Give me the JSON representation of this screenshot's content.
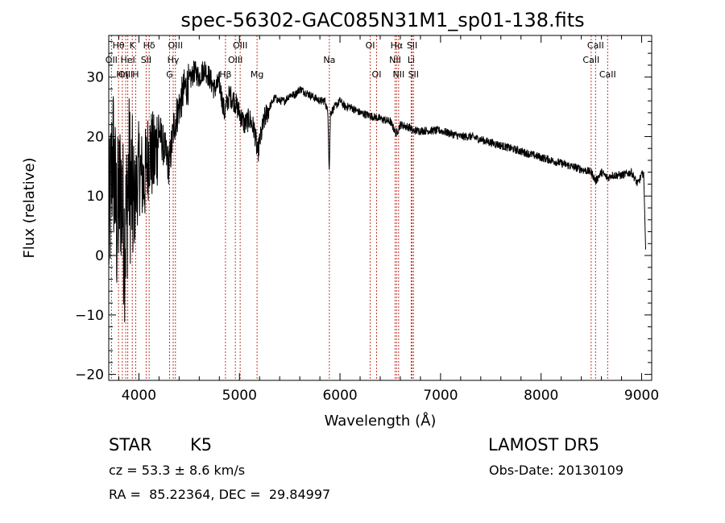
{
  "chart_data": {
    "type": "line",
    "title": "spec-56302-GAC085N31M1_sp01-138.fits",
    "xlabel": "Wavelength (Å)",
    "ylabel": "Flux (relative)",
    "xlim": [
      3700,
      9100
    ],
    "ylim": [
      -21,
      37
    ],
    "x_ticks": [
      4000,
      5000,
      6000,
      7000,
      8000,
      9000
    ],
    "y_ticks": [
      -20,
      -10,
      0,
      10,
      20,
      30
    ],
    "grid": false,
    "line_color": "#000000",
    "marker_color": "#c0392b",
    "spectral_lines": [
      {
        "label": "Hθ",
        "wavelength": 3797,
        "row": 0
      },
      {
        "label": "OII",
        "wavelength": 3727,
        "row": 1
      },
      {
        "label": "OIII",
        "wavelength": 3869,
        "row": 2
      },
      {
        "label": "K",
        "wavelength": 3934,
        "row": 0
      },
      {
        "label": "HeI",
        "wavelength": 3889,
        "row": 1
      },
      {
        "label": "Hη",
        "wavelength": 3835,
        "row": 2
      },
      {
        "label": "H",
        "wavelength": 3968,
        "row": 2
      },
      {
        "label": "Hδ",
        "wavelength": 4102,
        "row": 0
      },
      {
        "label": "SII",
        "wavelength": 4072,
        "row": 1
      },
      {
        "label": "OIII",
        "wavelength": 4363,
        "row": 0
      },
      {
        "label": "Hγ",
        "wavelength": 4341,
        "row": 1
      },
      {
        "label": "G",
        "wavelength": 4305,
        "row": 2
      },
      {
        "label": "OIII",
        "wavelength": 5007,
        "row": 0
      },
      {
        "label": "OIII",
        "wavelength": 4959,
        "row": 1
      },
      {
        "label": "Hβ",
        "wavelength": 4861,
        "row": 2
      },
      {
        "label": "Mg",
        "wavelength": 5175,
        "row": 2
      },
      {
        "label": "Na",
        "wavelength": 5894,
        "row": 1
      },
      {
        "label": "OI",
        "wavelength": 6300,
        "row": 0
      },
      {
        "label": "OI",
        "wavelength": 6364,
        "row": 2
      },
      {
        "label": "Hα",
        "wavelength": 6563,
        "row": 0
      },
      {
        "label": "NII",
        "wavelength": 6548,
        "row": 1
      },
      {
        "label": "NII",
        "wavelength": 6583,
        "row": 2
      },
      {
        "label": "SII",
        "wavelength": 6717,
        "row": 0
      },
      {
        "label": "Li",
        "wavelength": 6708,
        "row": 1
      },
      {
        "label": "SII",
        "wavelength": 6731,
        "row": 2
      },
      {
        "label": "CaII",
        "wavelength": 8542,
        "row": 0
      },
      {
        "label": "CaII",
        "wavelength": 8498,
        "row": 1
      },
      {
        "label": "CaII",
        "wavelength": 8662,
        "row": 2
      }
    ],
    "spectrum_anchor_points": [
      [
        3700,
        3
      ],
      [
        3740,
        18
      ],
      [
        3780,
        5
      ],
      [
        3820,
        12
      ],
      [
        3860,
        2
      ],
      [
        3900,
        14
      ],
      [
        3950,
        8
      ],
      [
        4000,
        15
      ],
      [
        4050,
        12
      ],
      [
        4100,
        18
      ],
      [
        4150,
        16
      ],
      [
        4200,
        21
      ],
      [
        4250,
        18
      ],
      [
        4300,
        15
      ],
      [
        4350,
        22
      ],
      [
        4400,
        25
      ],
      [
        4450,
        28
      ],
      [
        4500,
        29
      ],
      [
        4550,
        31
      ],
      [
        4600,
        30
      ],
      [
        4650,
        31.5
      ],
      [
        4700,
        30
      ],
      [
        4750,
        28
      ],
      [
        4800,
        29
      ],
      [
        4850,
        24
      ],
      [
        4900,
        27
      ],
      [
        4950,
        26
      ],
      [
        5000,
        24
      ],
      [
        5050,
        22
      ],
      [
        5100,
        23
      ],
      [
        5150,
        21
      ],
      [
        5180,
        17
      ],
      [
        5200,
        19
      ],
      [
        5250,
        23
      ],
      [
        5300,
        25
      ],
      [
        5350,
        26.5
      ],
      [
        5400,
        26
      ],
      [
        5450,
        26
      ],
      [
        5500,
        27
      ],
      [
        5550,
        27
      ],
      [
        5600,
        28
      ],
      [
        5650,
        27.5
      ],
      [
        5700,
        27
      ],
      [
        5750,
        26.5
      ],
      [
        5800,
        26
      ],
      [
        5850,
        26
      ],
      [
        5880,
        24
      ],
      [
        5893,
        14
      ],
      [
        5905,
        24
      ],
      [
        5950,
        25
      ],
      [
        6000,
        26
      ],
      [
        6050,
        25
      ],
      [
        6100,
        25
      ],
      [
        6150,
        24.5
      ],
      [
        6200,
        24
      ],
      [
        6300,
        23.5
      ],
      [
        6400,
        23
      ],
      [
        6500,
        22.5
      ],
      [
        6560,
        20.5
      ],
      [
        6600,
        22
      ],
      [
        6700,
        21.5
      ],
      [
        6720,
        21
      ],
      [
        6800,
        21
      ],
      [
        6900,
        21
      ],
      [
        7000,
        21
      ],
      [
        7100,
        20.5
      ],
      [
        7200,
        20
      ],
      [
        7300,
        20
      ],
      [
        7400,
        19.5
      ],
      [
        7500,
        19
      ],
      [
        7600,
        18.5
      ],
      [
        7700,
        18
      ],
      [
        7800,
        17.5
      ],
      [
        7900,
        17
      ],
      [
        8000,
        16.5
      ],
      [
        8100,
        16
      ],
      [
        8200,
        15.5
      ],
      [
        8300,
        15
      ],
      [
        8400,
        14.5
      ],
      [
        8500,
        14
      ],
      [
        8542,
        12.5
      ],
      [
        8600,
        14
      ],
      [
        8662,
        13
      ],
      [
        8700,
        13.5
      ],
      [
        8800,
        13.5
      ],
      [
        8900,
        14
      ],
      [
        8960,
        12
      ],
      [
        9000,
        13.5
      ],
      [
        9020,
        14
      ],
      [
        9040,
        1
      ]
    ]
  },
  "info": {
    "object_class": "STAR",
    "subclass": "K5",
    "survey": "LAMOST DR5",
    "cz_text": "cz = 53.3 ± 8.6 km/s",
    "obs_date": "Obs-Date: 20130109",
    "coords": "RA =  85.22364, DEC =  29.84997"
  }
}
